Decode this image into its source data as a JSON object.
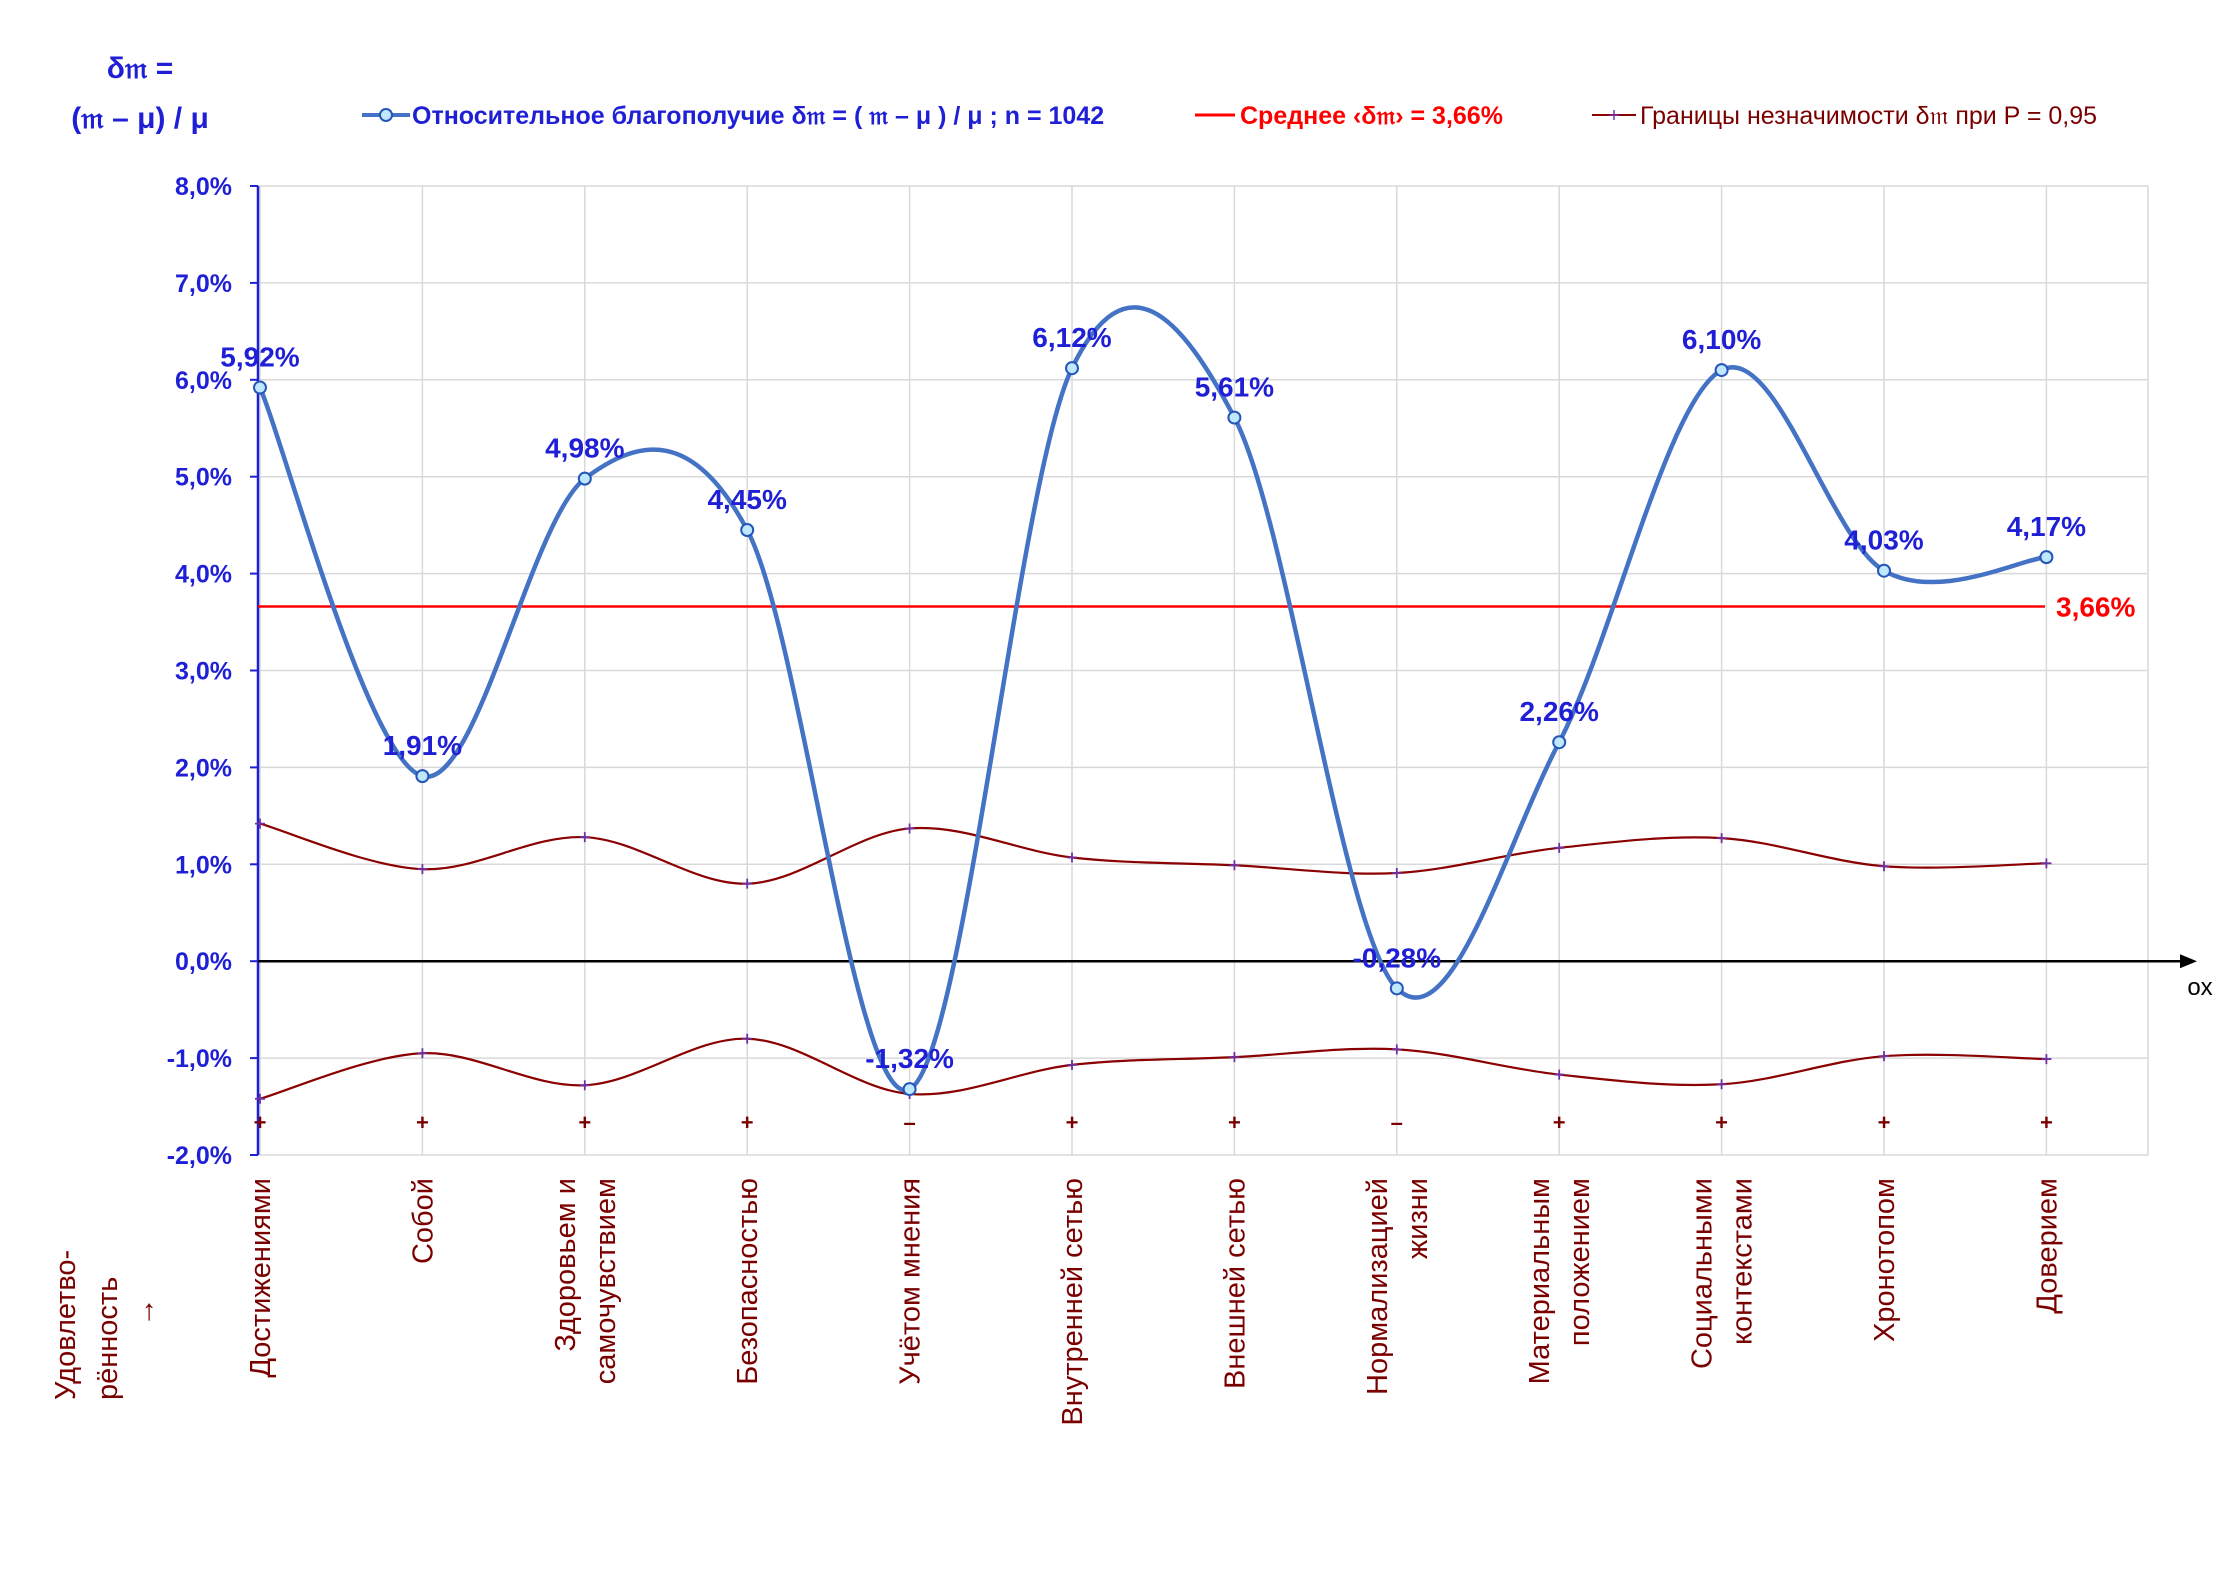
{
  "chart_data": {
    "type": "line",
    "y_axis_title_line1": "δ𝔪 =",
    "y_axis_title_line2": "(𝔪 – μ) / μ",
    "x_axis_name": "ox",
    "row_label_line1": "Удовлетво-",
    "row_label_line2": "рённость",
    "row_label_arrow": "→",
    "ylim": [
      -0.02,
      0.08
    ],
    "y_ticks": [
      {
        "value": 0.08,
        "label": "8,0%"
      },
      {
        "value": 0.07,
        "label": "7,0%"
      },
      {
        "value": 0.06,
        "label": "6,0%"
      },
      {
        "value": 0.05,
        "label": "5,0%"
      },
      {
        "value": 0.04,
        "label": "4,0%"
      },
      {
        "value": 0.03,
        "label": "3,0%"
      },
      {
        "value": 0.02,
        "label": "2,0%"
      },
      {
        "value": 0.01,
        "label": "1,0%"
      },
      {
        "value": 0.0,
        "label": "0,0%"
      },
      {
        "value": -0.01,
        "label": "-1,0%"
      },
      {
        "value": -0.02,
        "label": "-2,0%"
      }
    ],
    "grid": true,
    "categories": [
      [
        "Достижениями"
      ],
      [
        "Собой"
      ],
      [
        "Здоровьем и",
        "самочувствием"
      ],
      [
        "Безопасностью"
      ],
      [
        "Учётом мнения"
      ],
      [
        "Внутренней сетью"
      ],
      [
        "Внешней сетью"
      ],
      [
        "Нормализацией",
        "жизни"
      ],
      [
        "Материальным",
        "положением"
      ],
      [
        "Социальными",
        "контекстами"
      ],
      [
        "Хронотопом"
      ],
      [
        "Доверием"
      ]
    ],
    "signs": [
      "+",
      "+",
      "+",
      "+",
      "–",
      "+",
      "+",
      "–",
      "+",
      "+",
      "+",
      "+"
    ],
    "series": [
      {
        "name": "Относительное благополучие δ𝔪 = ( 𝔪 – μ ) / μ ; n = 1042",
        "color": "#4472c4",
        "values": [
          0.0592,
          0.0191,
          0.0498,
          0.0445,
          -0.0132,
          0.0612,
          0.0561,
          -0.0028,
          0.0226,
          0.061,
          0.0403,
          0.0417
        ],
        "labels": [
          "5,92%",
          "1,91%",
          "4,98%",
          "4,45%",
          "-1,32%",
          "6,12%",
          "5,61%",
          "-0,28%",
          "2,26%",
          "6,10%",
          "4,03%",
          "4,17%"
        ]
      },
      {
        "name": "Среднее ‹δ𝔪› = 3,66%",
        "color": "#ff0000",
        "value": 0.0366,
        "label": "3,66%"
      },
      {
        "name": "Границы незначимости δ𝔪 при P = 0,95",
        "color": "#8b0000",
        "marker_color": "#7030a0",
        "upper": [
          0.0142,
          0.0095,
          0.0128,
          0.008,
          0.0137,
          0.0107,
          0.0099,
          0.0091,
          0.0117,
          0.0127,
          0.0098,
          0.0101
        ],
        "lower": [
          -0.0142,
          -0.0095,
          -0.0128,
          -0.008,
          -0.0137,
          -0.0107,
          -0.0099,
          -0.0091,
          -0.0117,
          -0.0127,
          -0.0098,
          -0.0101
        ]
      }
    ],
    "legend_position": "top"
  }
}
